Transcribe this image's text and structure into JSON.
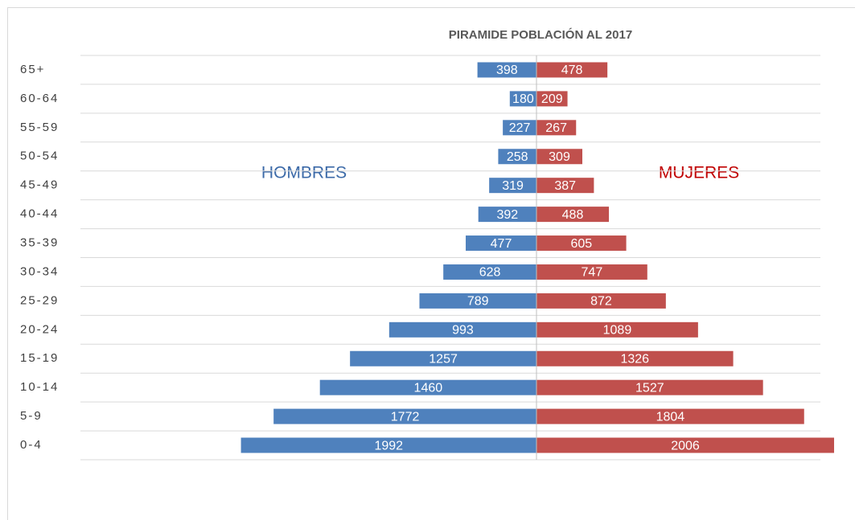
{
  "chart_data": {
    "type": "pyramid",
    "title": "PIRAMIDE POBLACIÓN AL 2017",
    "categories": [
      "65+",
      "60-64",
      "55-59",
      "50-54",
      "45-49",
      "40-44",
      "35-39",
      "30-34",
      "25-29",
      "20-24",
      "15-19",
      "10-14",
      "5-9",
      "0-4"
    ],
    "series": [
      {
        "name": "HOMBRES",
        "color": "#4f81bd",
        "values": [
          398,
          180,
          227,
          258,
          319,
          392,
          477,
          628,
          789,
          993,
          1257,
          1460,
          1772,
          1992
        ]
      },
      {
        "name": "MUJERES",
        "color": "#c0504d",
        "values": [
          478,
          209,
          267,
          309,
          387,
          488,
          605,
          747,
          872,
          1089,
          1326,
          1527,
          1804,
          2006
        ]
      }
    ],
    "grid": true
  }
}
